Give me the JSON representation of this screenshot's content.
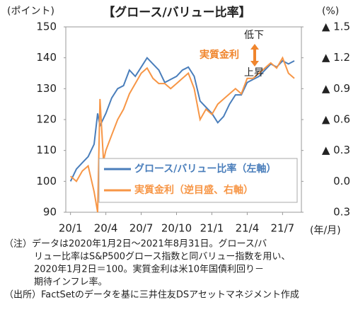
{
  "chart_data": {
    "type": "line",
    "title": "【グロース/バリュー比率】",
    "y_label": "(ポイント)",
    "y2_label": "(%)",
    "x_label": "(年/月)",
    "xlim": [
      -0.4,
      19.6
    ],
    "xticks": [
      {
        "value": 0,
        "label": "20/1"
      },
      {
        "value": 3,
        "label": "20/4"
      },
      {
        "value": 6,
        "label": "20/7"
      },
      {
        "value": 9,
        "label": "20/10"
      },
      {
        "value": 12,
        "label": "21/1"
      },
      {
        "value": 15,
        "label": "21/4"
      },
      {
        "value": 18,
        "label": "21/7"
      }
    ],
    "ylim": [
      90,
      150
    ],
    "yticks": [
      90,
      100,
      110,
      120,
      130,
      140,
      150
    ],
    "y2lim": [
      0.3,
      -1.5
    ],
    "y2ticks": [
      {
        "value": 0.3,
        "label": "0.3"
      },
      {
        "value": 0,
        "label": "0.0"
      },
      {
        "value": -0.3,
        "label": "▲ 0.3"
      },
      {
        "value": -0.6,
        "label": "▲ 0.6"
      },
      {
        "value": -0.9,
        "label": "▲ 0.9"
      },
      {
        "value": -1.2,
        "label": "▲ 1.2"
      },
      {
        "value": -1.5,
        "label": "▲ 1.5"
      }
    ],
    "series": [
      {
        "name": "グロース/バリュー比率（左軸）",
        "color": "#4a7ebb",
        "x": [
          0,
          0.5,
          1,
          1.5,
          2,
          2.3,
          2.5,
          3,
          3.5,
          4,
          4.5,
          5,
          5.5,
          6,
          6.5,
          7,
          7.5,
          8,
          8.5,
          9,
          9.5,
          10,
          10.5,
          11,
          11.5,
          12,
          12.5,
          13,
          13.5,
          14,
          14.5,
          15,
          15.5,
          16,
          16.5,
          17,
          17.5,
          18,
          18.5,
          19
        ],
        "values": [
          100,
          104,
          106,
          108,
          112,
          122,
          118,
          122,
          127,
          130,
          131,
          136,
          134,
          137,
          140,
          138,
          136,
          132,
          133,
          134,
          136,
          137,
          134,
          126,
          124,
          122,
          119,
          121,
          125,
          128,
          128,
          132,
          133,
          134,
          136,
          138,
          137,
          139,
          138,
          139
        ]
      },
      {
        "name": "実質金利（逆目盛、右軸）",
        "color": "#f79646",
        "axis": "y2",
        "x": [
          0,
          0.5,
          1,
          1.5,
          2,
          2.3,
          2.5,
          2.8,
          3,
          3.5,
          4,
          4.5,
          5,
          5.5,
          6,
          6.5,
          7,
          7.5,
          8,
          8.5,
          9,
          9.5,
          10,
          10.5,
          11,
          11.5,
          12,
          12.5,
          13,
          13.5,
          14,
          14.5,
          15,
          15.5,
          16,
          16.5,
          17,
          17.5,
          18,
          18.5,
          19
        ],
        "values": [
          -0.05,
          0,
          -0.1,
          -0.15,
          0.1,
          0.3,
          -0.8,
          -0.2,
          -0.3,
          -0.45,
          -0.6,
          -0.7,
          -0.85,
          -0.95,
          -1.05,
          -1.1,
          -1,
          -0.95,
          -0.95,
          -0.9,
          -0.95,
          -1,
          -1.05,
          -0.9,
          -0.6,
          -0.7,
          -0.65,
          -0.75,
          -0.8,
          -0.85,
          -0.9,
          -0.85,
          -1,
          -1,
          -1.05,
          -1.1,
          -1.15,
          -1.1,
          -1.2,
          -1.05,
          -1
        ]
      }
    ],
    "annotations": [
      "実質金利",
      "低下",
      "上昇"
    ],
    "notes": [
      "（注）データは2020年1月2日～2021年8月31日。グロース/バ",
      "リュー比率はS&P500グロース指数と同バリュー指数を用い、",
      "2020年1月2日＝100。実質金利は米10年国債利回り－",
      "期待インフレ率。",
      "（出所）FactSetのデータを基に三井住友DSアセットマネジメント作成"
    ]
  }
}
